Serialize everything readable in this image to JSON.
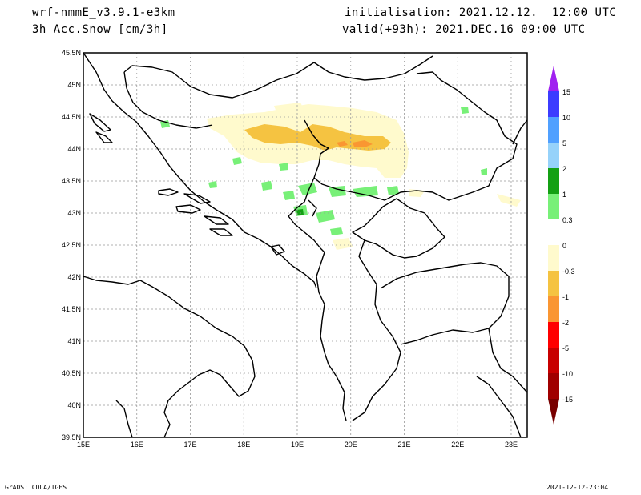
{
  "header": {
    "model": "wrf-nmmE_v3.9.1-e3km",
    "field": "3h Acc.Snow [cm/3h]",
    "init": "initialisation: 2021.12.12.  12:00 UTC",
    "valid": "valid(+93h): 2021.DEC.16 09:00 UTC"
  },
  "axes": {
    "lat_labels": [
      "45.5N",
      "45N",
      "44.5N",
      "44N",
      "43.5N",
      "43N",
      "42.5N",
      "42N",
      "41.5N",
      "41N",
      "40.5N",
      "40N",
      "39.5N"
    ],
    "lon_labels": [
      "15E",
      "16E",
      "17E",
      "18E",
      "19E",
      "20E",
      "21E",
      "22E",
      "23E"
    ],
    "lat_range": [
      39.5,
      45.5
    ],
    "lon_range": [
      15,
      23.3
    ],
    "grid": true
  },
  "legend": {
    "labels": [
      "15",
      "10",
      "5",
      "2",
      "1",
      "0.3",
      "0",
      "-0.3",
      "-1",
      "-2",
      "-5",
      "-10",
      "-15"
    ],
    "colors": [
      "#a020f0",
      "#3c3cff",
      "#50a0ff",
      "#96d2fa",
      "#14a014",
      "#78f078",
      "#ffffff",
      "#fffacd",
      "#f5c341",
      "#fa9632",
      "#ff0000",
      "#c80000",
      "#a00000",
      "#780000"
    ]
  },
  "footer": {
    "left": "GrADS: COLA/IGES",
    "right": "2021-12-12-23:04"
  }
}
